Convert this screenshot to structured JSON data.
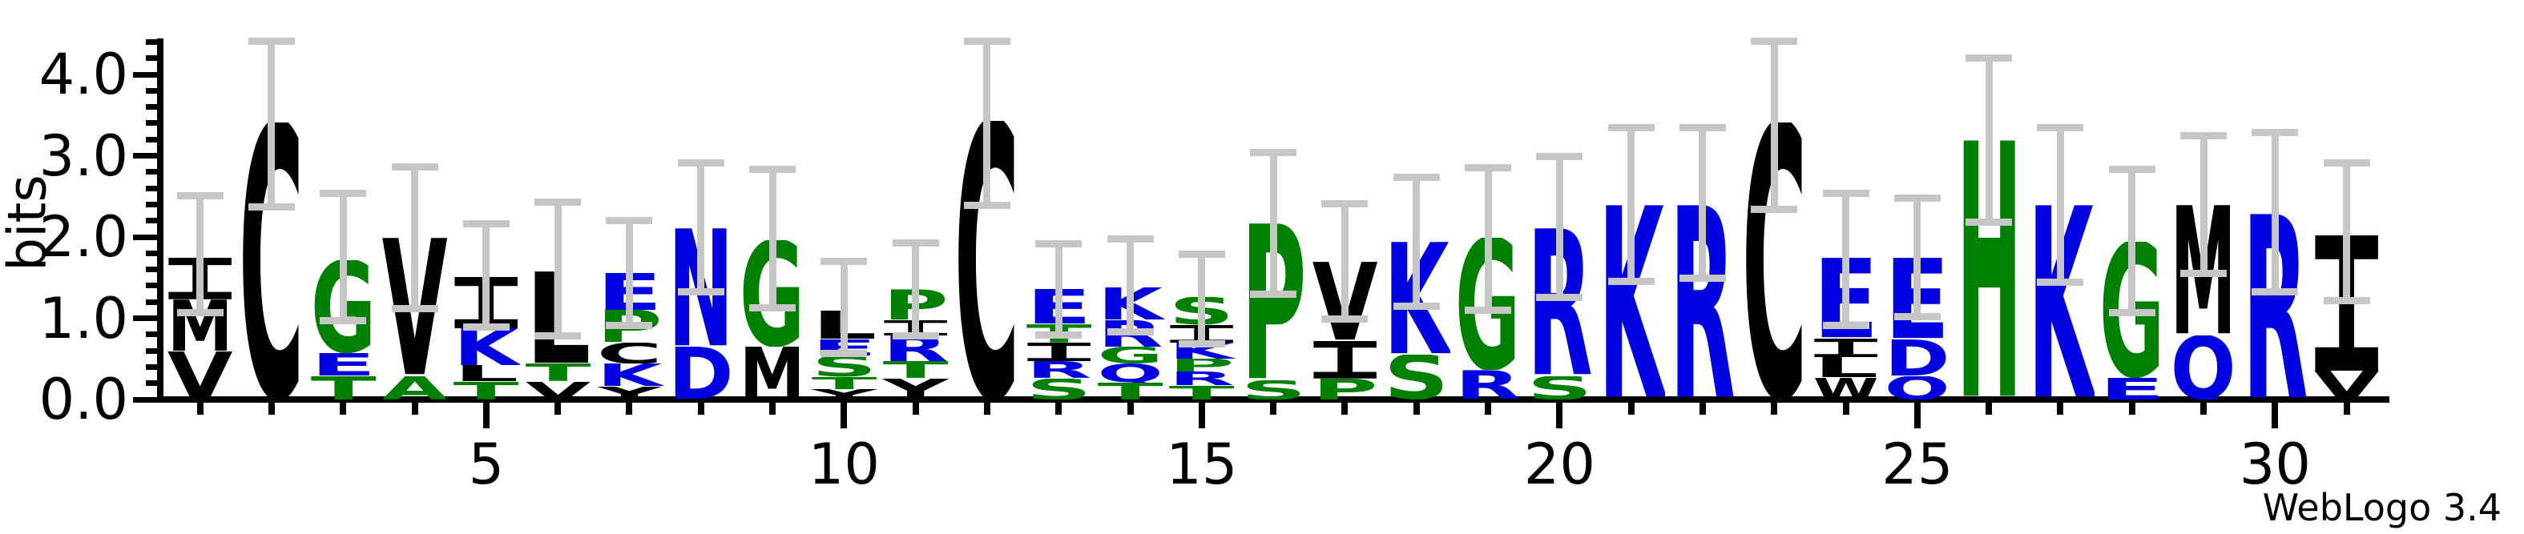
{
  "credit": "WebLogo 3.4",
  "chart_data": {
    "type": "bar",
    "subtype": "sequence_logo",
    "title": "",
    "xlabel": "",
    "ylabel": "bits",
    "ylim": [
      0,
      4.45
    ],
    "yticks": [
      0,
      1,
      2,
      3,
      4
    ],
    "ytick_labels": [
      "0.0",
      "1.0",
      "2.0",
      "3.0",
      "4.0"
    ],
    "xticks": [
      5,
      10,
      15,
      20,
      25,
      30
    ],
    "n_positions": 31,
    "grid": false,
    "legend_position": "none",
    "color_scheme": "hydrophobicity",
    "colors": {
      "hydrophilic": "#0000e0",
      "neutral": "#008000",
      "hydrophobic": "#000000",
      "error_bar": "#c6c6c6"
    },
    "residue_classes": {
      "R": "hydrophilic",
      "K": "hydrophilic",
      "D": "hydrophilic",
      "E": "hydrophilic",
      "N": "hydrophilic",
      "Q": "hydrophilic",
      "S": "neutral",
      "G": "neutral",
      "H": "neutral",
      "T": "neutral",
      "A": "neutral",
      "P": "neutral",
      "Y": "hydrophobic",
      "V": "hydrophobic",
      "M": "hydrophobic",
      "C": "hydrophobic",
      "L": "hydrophobic",
      "F": "hydrophobic",
      "I": "hydrophobic",
      "W": "hydrophobic"
    },
    "positions": [
      {
        "pos": 1,
        "stack": [
          [
            "V",
            0.59
          ],
          [
            "M",
            0.64
          ],
          [
            "I",
            0.51
          ]
        ],
        "error": [
          1.02,
          2.55
        ]
      },
      {
        "pos": 2,
        "stack": [
          [
            "C",
            3.41
          ]
        ],
        "error": [
          2.33,
          4.45
        ]
      },
      {
        "pos": 3,
        "stack": [
          [
            "T",
            0.29
          ],
          [
            "E",
            0.28
          ],
          [
            "G",
            1.14
          ]
        ],
        "error": [
          0.93,
          2.58
        ]
      },
      {
        "pos": 4,
        "stack": [
          [
            "A",
            0.29
          ],
          [
            "V",
            1.7
          ]
        ],
        "error": [
          1.07,
          2.91
        ]
      },
      {
        "pos": 5,
        "stack": [
          [
            "T",
            0.22
          ],
          [
            "L",
            0.2
          ],
          [
            "K",
            0.46
          ],
          [
            "I",
            0.63
          ]
        ],
        "error": [
          0.85,
          2.21
        ]
      },
      {
        "pos": 6,
        "stack": [
          [
            "V",
            0.22
          ],
          [
            "T",
            0.22
          ],
          [
            "L",
            1.14
          ]
        ],
        "error": [
          0.74,
          2.47
        ]
      },
      {
        "pos": 7,
        "stack": [
          [
            "Y",
            0.16
          ],
          [
            "K",
            0.28
          ],
          [
            "C",
            0.26
          ],
          [
            "P",
            0.4
          ],
          [
            "E",
            0.46
          ]
        ],
        "error": [
          0.87,
          2.25
        ]
      },
      {
        "pos": 8,
        "stack": [
          [
            "D",
            0.65
          ],
          [
            "N",
            1.46
          ]
        ],
        "error": [
          1.28,
          2.96
        ]
      },
      {
        "pos": 9,
        "stack": [
          [
            "M",
            0.65
          ],
          [
            "G",
            1.31
          ]
        ],
        "error": [
          1.08,
          2.88
        ]
      },
      {
        "pos": 10,
        "stack": [
          [
            "Y",
            0.13
          ],
          [
            "T",
            0.15
          ],
          [
            "S",
            0.26
          ],
          [
            "E",
            0.2
          ],
          [
            "L",
            0.35
          ]
        ],
        "error": [
          0.52,
          1.74
        ]
      },
      {
        "pos": 11,
        "stack": [
          [
            "Y",
            0.26
          ],
          [
            "T",
            0.21
          ],
          [
            "R",
            0.32
          ],
          [
            "I",
            0.19
          ],
          [
            "P",
            0.38
          ]
        ],
        "error": [
          0.74,
          1.97
        ]
      },
      {
        "pos": 12,
        "stack": [
          [
            "C",
            3.43
          ]
        ],
        "error": [
          2.34,
          4.45
        ]
      },
      {
        "pos": 13,
        "stack": [
          [
            "S",
            0.26
          ],
          [
            "R",
            0.21
          ],
          [
            "I",
            0.23
          ],
          [
            "T",
            0.23
          ],
          [
            "E",
            0.43
          ]
        ],
        "error": [
          0.75,
          1.96
        ]
      },
      {
        "pos": 14,
        "stack": [
          [
            "T",
            0.21
          ],
          [
            "Q",
            0.23
          ],
          [
            "G",
            0.21
          ],
          [
            "R",
            0.33
          ],
          [
            "K",
            0.4
          ]
        ],
        "error": [
          0.79,
          2.02
        ]
      },
      {
        "pos": 15,
        "stack": [
          [
            "T",
            0.17
          ],
          [
            "R",
            0.17
          ],
          [
            "P",
            0.16
          ],
          [
            "K",
            0.2
          ],
          [
            "I",
            0.22
          ],
          [
            "S",
            0.34
          ]
        ],
        "error": [
          0.64,
          1.83
        ]
      },
      {
        "pos": 16,
        "stack": [
          [
            "S",
            0.24
          ],
          [
            "P",
            1.93
          ]
        ],
        "error": [
          1.25,
          3.08
        ]
      },
      {
        "pos": 17,
        "stack": [
          [
            "P",
            0.26
          ],
          [
            "I",
            0.46
          ],
          [
            "V",
            0.97
          ]
        ],
        "error": [
          0.95,
          2.45
        ]
      },
      {
        "pos": 18,
        "stack": [
          [
            "S",
            0.55
          ],
          [
            "K",
            1.39
          ]
        ],
        "error": [
          1.1,
          2.78
        ]
      },
      {
        "pos": 19,
        "stack": [
          [
            "R",
            0.36
          ],
          [
            "G",
            1.63
          ]
        ],
        "error": [
          1.05,
          2.9
        ]
      },
      {
        "pos": 20,
        "stack": [
          [
            "S",
            0.29
          ],
          [
            "R",
            1.82
          ]
        ],
        "error": [
          1.21,
          3.03
        ]
      },
      {
        "pos": 21,
        "stack": [
          [
            "K",
            2.39
          ]
        ],
        "error": [
          1.41,
          3.39
        ]
      },
      {
        "pos": 22,
        "stack": [
          [
            "R",
            2.39
          ]
        ],
        "error": [
          1.45,
          3.39
        ]
      },
      {
        "pos": 23,
        "stack": [
          [
            "C",
            3.41
          ]
        ],
        "error": [
          2.3,
          4.45
        ]
      },
      {
        "pos": 24,
        "stack": [
          [
            "W",
            0.27
          ],
          [
            "L",
            0.25
          ],
          [
            "I",
            0.23
          ],
          [
            "E",
            0.99
          ]
        ],
        "error": [
          0.87,
          2.58
        ]
      },
      {
        "pos": 25,
        "stack": [
          [
            "Q",
            0.29
          ],
          [
            "D",
            0.45
          ],
          [
            "E",
            1.0
          ]
        ],
        "error": [
          0.98,
          2.52
        ]
      },
      {
        "pos": 26,
        "stack": [
          [
            "H",
            3.19
          ]
        ],
        "error": [
          2.14,
          4.25
        ]
      },
      {
        "pos": 27,
        "stack": [
          [
            "K",
            2.39
          ]
        ],
        "error": [
          1.4,
          3.39
        ]
      },
      {
        "pos": 28,
        "stack": [
          [
            "E",
            0.27
          ],
          [
            "G",
            1.67
          ]
        ],
        "error": [
          1.02,
          2.88
        ]
      },
      {
        "pos": 29,
        "stack": [
          [
            "Q",
            0.79
          ],
          [
            "M",
            1.6
          ]
        ],
        "error": [
          1.51,
          3.29
        ]
      },
      {
        "pos": 30,
        "stack": [
          [
            "R",
            2.29
          ]
        ],
        "error": [
          1.28,
          3.33
        ]
      },
      {
        "pos": 31,
        "stack": [
          [
            "V",
            0.35
          ],
          [
            "I",
            1.67
          ]
        ],
        "error": [
          1.17,
          2.96
        ]
      }
    ]
  }
}
